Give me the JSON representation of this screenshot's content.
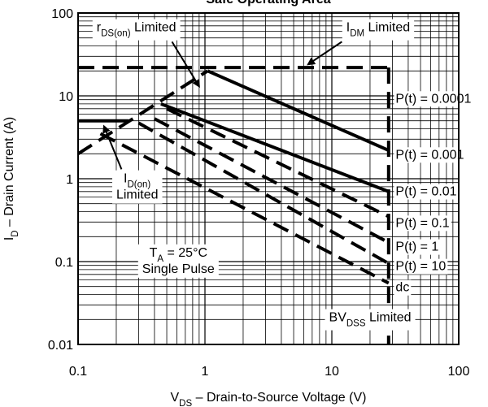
{
  "chart_data": {
    "type": "line",
    "title": "Safe Operating Area",
    "xlabel": {
      "main": "V",
      "sub": "DS",
      "rest": "  –  Drain-to-Source Voltage (V)"
    },
    "ylabel": {
      "main": "I",
      "sub": "D",
      "rest": "  –  Drain Current (A)"
    },
    "x_scale": "log",
    "y_scale": "log",
    "xlim": [
      0.1,
      100
    ],
    "ylim": [
      0.01,
      100
    ],
    "x_ticks": [
      {
        "value": 0.1,
        "label": "0.1"
      },
      {
        "value": 1,
        "label": "1"
      },
      {
        "value": 10,
        "label": "10"
      },
      {
        "value": 100,
        "label": "100"
      }
    ],
    "y_ticks": [
      {
        "value": 0.01,
        "label": "0.01"
      },
      {
        "value": 0.1,
        "label": "0.1"
      },
      {
        "value": 1,
        "label": "1"
      },
      {
        "value": 10,
        "label": "10"
      },
      {
        "value": 100,
        "label": "100"
      }
    ],
    "grid": true,
    "series": [
      {
        "name": "P(t) = 0.0001",
        "style": "solid",
        "points": [
          [
            1.05,
            20
          ],
          [
            28,
            2.2
          ]
        ]
      },
      {
        "name": "P(t) = 0.001",
        "style": "solid",
        "points": [
          [
            0.45,
            8
          ],
          [
            28,
            0.7
          ]
        ]
      },
      {
        "name": "P(t) = 0.01",
        "style": "dashed",
        "points": [
          [
            0.5,
            7
          ],
          [
            28,
            0.35
          ]
        ]
      },
      {
        "name": "P(t) = 0.1",
        "style": "dashed",
        "points": [
          [
            0.4,
            5.3
          ],
          [
            28,
            0.17
          ]
        ]
      },
      {
        "name": "P(t) = 1",
        "style": "dashed",
        "points": [
          [
            0.3,
            4.7
          ],
          [
            28,
            0.095
          ]
        ]
      },
      {
        "name": "P(t) = 10",
        "style": "dashed",
        "points": [
          [
            0.15,
            3.5
          ],
          [
            28,
            0.055
          ]
        ]
      },
      {
        "name": "dc",
        "style": "dashed",
        "points": [
          [
            28,
            22
          ],
          [
            28,
            0.01
          ]
        ]
      },
      {
        "name": "I_D(on) Limited",
        "style": "solid",
        "points": [
          [
            0.1,
            5
          ],
          [
            0.25,
            5
          ]
        ]
      },
      {
        "name": "r_DS(on) Limited",
        "style": "dashed",
        "points": [
          [
            0.1,
            2
          ],
          [
            1.05,
            20
          ]
        ]
      },
      {
        "name": "I_DM Limited",
        "style": "dashed",
        "points": [
          [
            0.1,
            22
          ],
          [
            28,
            22
          ]
        ]
      }
    ],
    "curve_labels": [
      {
        "series": "P(t) = 0.0001",
        "text": "P(t) = 0.0001",
        "at": [
          30,
          9.5
        ]
      },
      {
        "series": "P(t) = 0.001",
        "text": "P(t) = 0.001",
        "at": [
          30,
          2.0
        ]
      },
      {
        "series": "P(t) = 0.01",
        "text": "P(t) = 0.01",
        "at": [
          30,
          0.72
        ]
      },
      {
        "series": "P(t) = 0.1",
        "text": "P(t) = 0.1",
        "at": [
          30,
          0.3
        ]
      },
      {
        "series": "P(t) = 1",
        "text": "P(t) = 1",
        "at": [
          30,
          0.155
        ]
      },
      {
        "series": "P(t) = 10",
        "text": "P(t) = 10",
        "at": [
          30,
          0.09
        ]
      },
      {
        "series": "dc",
        "text": "dc",
        "at": [
          30,
          0.05
        ]
      }
    ],
    "annotations": [
      {
        "id": "rdson",
        "parts": [
          [
            "r",
            false
          ],
          [
            "DS(on)",
            true
          ],
          [
            " Limited",
            false
          ]
        ],
        "at": [
          0.14,
          60
        ],
        "arrow_from": [
          0.55,
          45
        ],
        "arrow_to": [
          0.9,
          13
        ]
      },
      {
        "id": "idm",
        "parts": [
          [
            "I",
            false
          ],
          [
            "DM",
            true
          ],
          [
            " Limited",
            false
          ]
        ],
        "at": [
          13,
          60
        ],
        "arrow_from": [
          12,
          45
        ],
        "arrow_to": [
          6.5,
          24
        ]
      },
      {
        "id": "idon",
        "parts_lines": [
          [
            [
              "I",
              false
            ],
            [
              "D(on)",
              true
            ]
          ],
          [
            [
              "Limited",
              false
            ]
          ]
        ],
        "at": [
          0.2,
          0.9
        ],
        "arrow_from": [
          0.22,
          1.3
        ],
        "arrow_to": [
          0.16,
          4.3
        ]
      },
      {
        "id": "ta",
        "parts_lines": [
          [
            [
              "T",
              false
            ],
            [
              "A",
              true
            ],
            [
              " = 25°C",
              false
            ]
          ],
          [
            [
              "Single Pulse",
              false
            ]
          ]
        ],
        "at": [
          0.32,
          0.115
        ]
      },
      {
        "id": "bvdss",
        "parts": [
          [
            "BV",
            false
          ],
          [
            "DSS",
            true
          ],
          [
            " Limited",
            false
          ]
        ],
        "at": [
          9.5,
          0.019
        ],
        "arrow_from": [
          21,
          0.019
        ],
        "arrow_to": [
          27,
          0.019
        ]
      }
    ]
  }
}
